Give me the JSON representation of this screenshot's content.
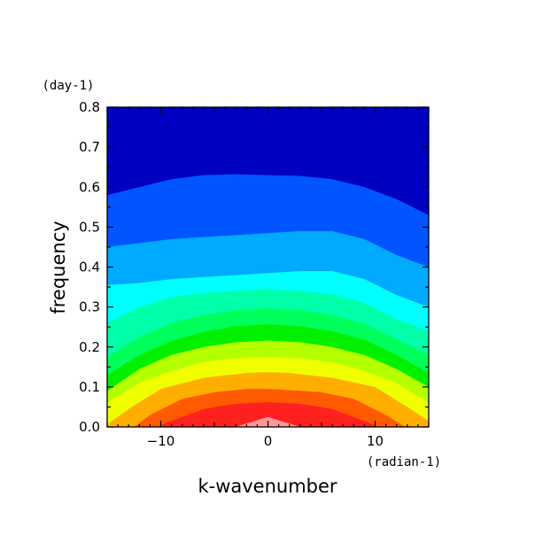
{
  "chart_data": {
    "type": "heatmap",
    "subtype": "filled-contour",
    "xlabel": "k-wavenumber",
    "ylabel": "frequency",
    "x_unit": "(radian-1)",
    "y_unit": "(day-1)",
    "xlim": [
      -15,
      15
    ],
    "ylim": [
      0.0,
      0.8
    ],
    "x_ticks": [
      -10,
      0,
      10
    ],
    "x_tick_labels": [
      "-10",
      "0",
      "10"
    ],
    "y_ticks": [
      0.0,
      0.1,
      0.2,
      0.3,
      0.4,
      0.5,
      0.6,
      0.7,
      0.8
    ],
    "y_tick_labels": [
      "0.0",
      "0.1",
      "0.2",
      "0.3",
      "0.4",
      "0.5",
      "0.6",
      "0.7",
      "0.8"
    ],
    "grid": false,
    "levels": [
      {
        "color": "#ff9999"
      },
      {
        "color": "#ff2020"
      },
      {
        "color": "#ff5a00"
      },
      {
        "color": "#ffae00"
      },
      {
        "color": "#f0ff00"
      },
      {
        "color": "#b4ff00"
      },
      {
        "color": "#00f000"
      },
      {
        "color": "#00ff5a"
      },
      {
        "color": "#00ffa8"
      },
      {
        "color": "#00ffff"
      },
      {
        "color": "#00aaff"
      },
      {
        "color": "#0055ff"
      },
      {
        "color": "#0000c0"
      }
    ],
    "contour_boundaries": [
      {
        "x": [
          -7.5,
          -5,
          -3,
          0,
          3,
          5,
          7.5
        ],
        "y": [
          0.0,
          0.0,
          0.0,
          0.025,
          0.0,
          0.0,
          0.0
        ]
      },
      {
        "x": [
          -10.4,
          -9,
          -6,
          -3,
          0,
          3,
          6,
          9,
          10.3
        ],
        "y": [
          0.0,
          0.015,
          0.045,
          0.058,
          0.062,
          0.058,
          0.045,
          0.015,
          0.0
        ]
      },
      {
        "x": [
          -12.5,
          -11,
          -8,
          -5,
          -2,
          0,
          2,
          5,
          8,
          11,
          12.8
        ],
        "y": [
          0.0,
          0.03,
          0.07,
          0.087,
          0.095,
          0.095,
          0.092,
          0.087,
          0.07,
          0.03,
          0.0
        ]
      },
      {
        "x": [
          -14.8,
          -13,
          -10,
          -6,
          -2,
          0,
          2,
          6,
          10,
          13,
          15
        ],
        "y": [
          0.01,
          0.045,
          0.095,
          0.123,
          0.135,
          0.137,
          0.135,
          0.123,
          0.1,
          0.05,
          0.015
        ]
      },
      {
        "x": [
          -15,
          -12,
          -9,
          -6,
          -3,
          0,
          3,
          6,
          9,
          12,
          15
        ],
        "y": [
          0.06,
          0.11,
          0.14,
          0.162,
          0.172,
          0.175,
          0.172,
          0.162,
          0.14,
          0.11,
          0.06
        ]
      },
      {
        "x": [
          -15,
          -12,
          -9,
          -6,
          -3,
          0,
          3,
          6,
          9,
          12,
          15
        ],
        "y": [
          0.09,
          0.145,
          0.18,
          0.2,
          0.212,
          0.216,
          0.212,
          0.2,
          0.18,
          0.145,
          0.1
        ]
      },
      {
        "x": [
          -15,
          -12,
          -9,
          -6,
          -3,
          0,
          3,
          6,
          9,
          12,
          15
        ],
        "y": [
          0.13,
          0.18,
          0.215,
          0.238,
          0.252,
          0.257,
          0.252,
          0.24,
          0.218,
          0.18,
          0.135
        ]
      },
      {
        "x": [
          -15,
          -12,
          -9,
          -6,
          -3,
          0,
          3,
          6,
          9,
          12,
          15
        ],
        "y": [
          0.175,
          0.225,
          0.26,
          0.28,
          0.292,
          0.297,
          0.292,
          0.28,
          0.258,
          0.22,
          0.18
        ]
      },
      {
        "x": [
          -15,
          -12,
          -9,
          -6,
          -3,
          0,
          3,
          6,
          9,
          12,
          15
        ],
        "y": [
          0.26,
          0.3,
          0.325,
          0.335,
          0.34,
          0.345,
          0.34,
          0.332,
          0.31,
          0.27,
          0.24
        ]
      },
      {
        "x": [
          -15,
          -12,
          -9,
          -6,
          -3,
          0,
          3,
          6,
          9,
          12,
          15
        ],
        "y": [
          0.355,
          0.36,
          0.37,
          0.375,
          0.38,
          0.385,
          0.39,
          0.39,
          0.37,
          0.33,
          0.3
        ]
      },
      {
        "x": [
          -15,
          -12,
          -9,
          -6,
          -3,
          0,
          3,
          6,
          9,
          12,
          15
        ],
        "y": [
          0.45,
          0.46,
          0.47,
          0.475,
          0.48,
          0.485,
          0.49,
          0.49,
          0.47,
          0.43,
          0.4
        ]
      },
      {
        "x": [
          -15,
          -12,
          -9,
          -6,
          -3,
          0,
          3,
          6,
          9,
          12,
          15
        ],
        "y": [
          0.58,
          0.6,
          0.62,
          0.63,
          0.632,
          0.63,
          0.628,
          0.62,
          0.6,
          0.57,
          0.53
        ]
      }
    ]
  }
}
